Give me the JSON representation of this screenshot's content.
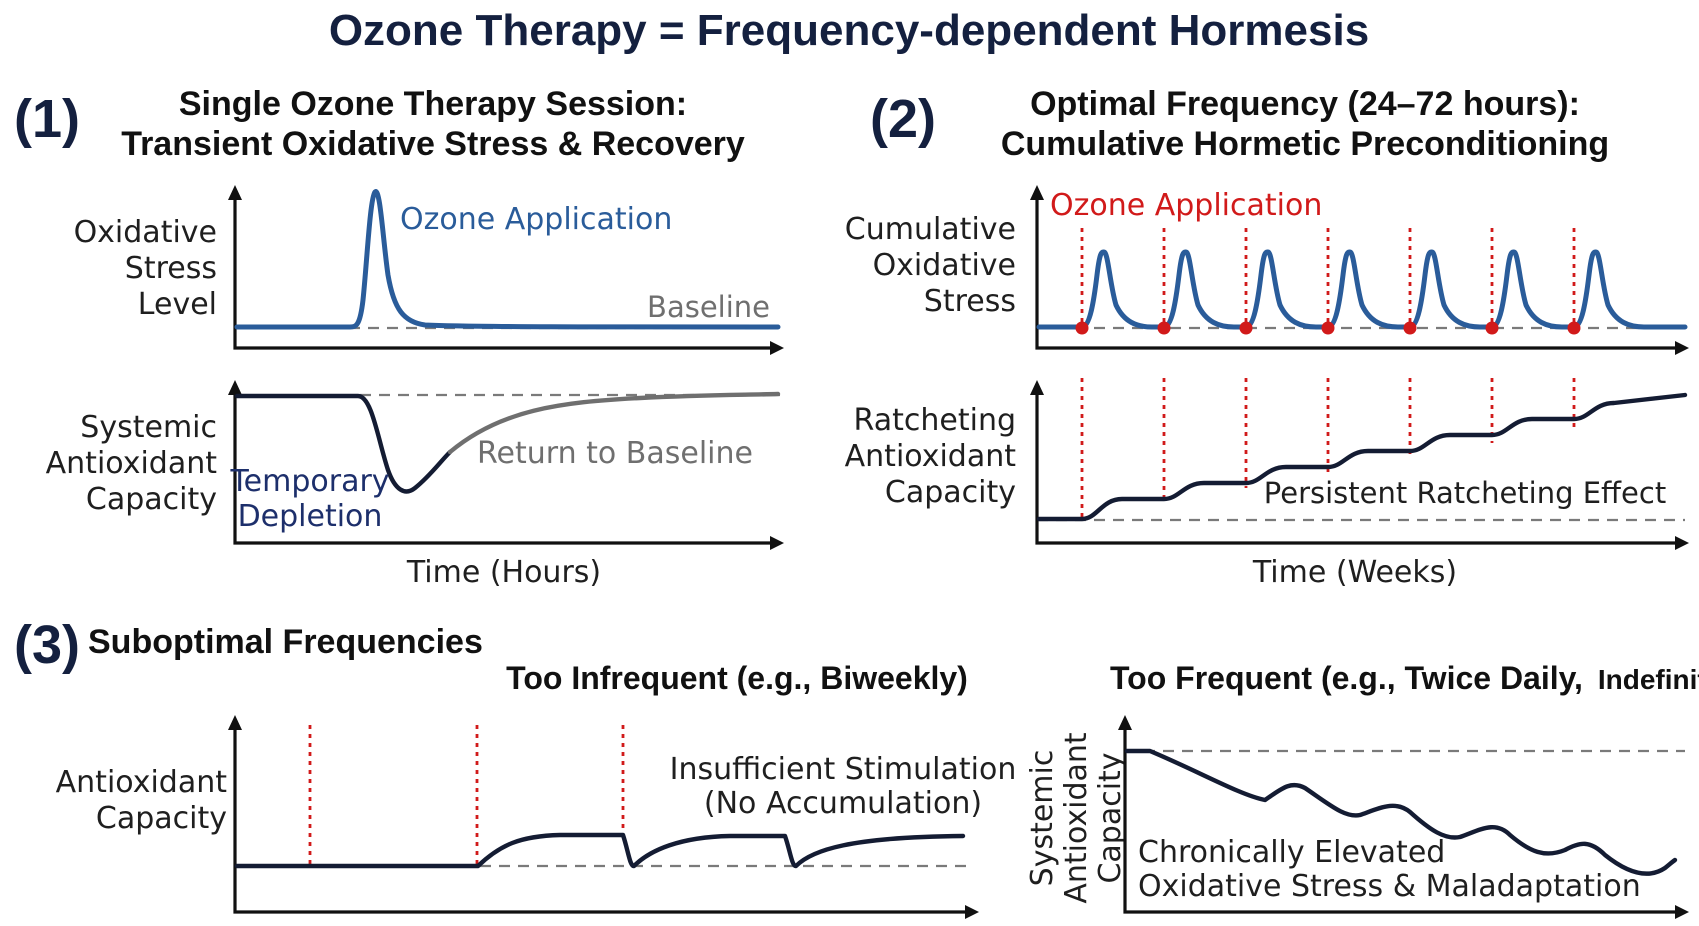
{
  "figure": {
    "title": "Ozone Therapy = Frequency-dependent Hormesis"
  },
  "panel1": {
    "number": "(1)",
    "title_line1": "Single Ozone Therapy Session:",
    "title_line2": "Transient Oxidative Stress & Recovery",
    "top": {
      "ylabel": [
        "Oxidative",
        "Stress",
        "Level"
      ],
      "peak_label": "Ozone Application",
      "baseline_label": "Baseline"
    },
    "bottom": {
      "ylabel": [
        "Systemic",
        "Antioxidant",
        "Capacity"
      ],
      "dip_label": [
        "Temporary",
        "Depletion"
      ],
      "recovery_label": "Return to Baseline"
    },
    "xlabel": "Time (Hours)"
  },
  "panel2": {
    "number": "(2)",
    "title_line1": "Optimal Frequency (24–72 hours):",
    "title_line2": "Cumulative Hormetic Preconditioning",
    "top": {
      "ylabel": [
        "Cumulative",
        "Oxidative",
        "Stress"
      ],
      "marker_label": "Ozone Application"
    },
    "bottom": {
      "ylabel": [
        "Ratcheting",
        "Antioxidant",
        "Capacity"
      ],
      "effect_label": "Persistent Ratcheting Effect"
    },
    "xlabel": "Time (Weeks)",
    "applications": 7
  },
  "panel3": {
    "number": "(3)",
    "title": "Suboptimal Frequencies",
    "left": {
      "title": "Too Infrequent (e.g., Biweekly)",
      "ylabel": [
        "Antioxidant",
        "Capacity"
      ],
      "annotation": [
        "Insufficient Stimulation",
        "(No Accumulation)"
      ]
    },
    "right": {
      "title_main": "Too Frequent (e.g., Twice Daily,",
      "title_tail": "Indefinitely)",
      "ylabel": [
        "Systemic",
        "Antioxidant",
        "Capacity"
      ],
      "annotation": [
        "Chronically Elevated",
        "Oxidative Stress & Maladaptation"
      ]
    }
  },
  "colors": {
    "title": "#14203f",
    "stress_curve": "#2a5c9a",
    "capacity_curve": "#141c33",
    "recovery_curve": "#6f6f6f",
    "application_marker": "#d11a1a",
    "baseline": "#7a7a7a"
  }
}
